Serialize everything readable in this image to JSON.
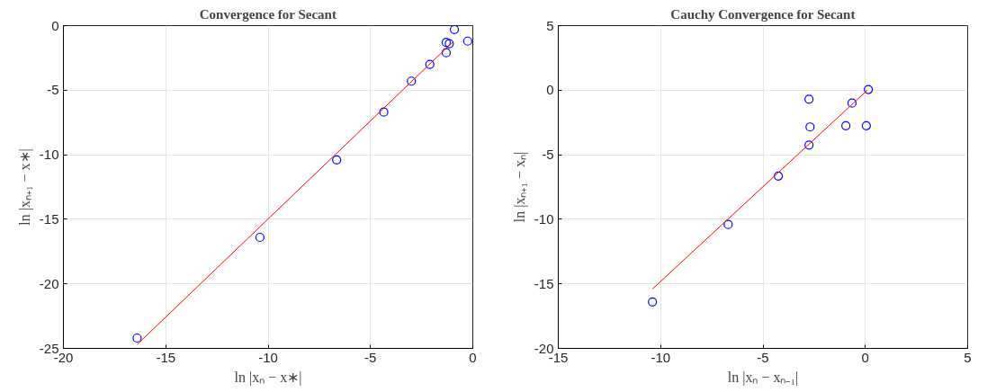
{
  "chart_data": [
    {
      "type": "scatter",
      "title": "Convergence for Secant",
      "xlabel": "ln |xₙ − x∗|",
      "ylabel": "ln |xₙ₊₁ − x∗|",
      "xlim": [
        -20,
        0
      ],
      "ylim": [
        -25,
        0
      ],
      "xticks": [
        -20,
        -15,
        -10,
        -5,
        0
      ],
      "yticks": [
        -25,
        -20,
        -15,
        -10,
        -5,
        0
      ],
      "grid": true,
      "series": [
        {
          "color": "#0000ff",
          "marker": "circle",
          "x": [
            -16.4,
            -10.4,
            -6.65,
            -4.35,
            -3.0,
            -2.1,
            -1.3,
            -1.3,
            -1.15,
            -0.9,
            -0.25
          ],
          "values": [
            -24.2,
            -16.4,
            -10.4,
            -6.7,
            -4.3,
            -3.0,
            -2.1,
            -1.3,
            -1.4,
            -0.3,
            -1.2
          ]
        },
        {
          "type": "line",
          "color": "#ff0000",
          "marker": "none",
          "x": [
            -16.4,
            -1.0
          ],
          "values": [
            -24.7,
            -1.3
          ]
        }
      ]
    },
    {
      "type": "scatter",
      "title": "Cauchy Convergence for Secant",
      "xlabel": "ln |xₙ − xₙ₋₁|",
      "ylabel": "ln |xₙ₊₁ − xₙ|",
      "xlim": [
        -15,
        5
      ],
      "ylim": [
        -20,
        5
      ],
      "xticks": [
        -15,
        -10,
        -5,
        0,
        5
      ],
      "yticks": [
        -20,
        -15,
        -10,
        -5,
        0,
        5
      ],
      "grid": true,
      "series": [
        {
          "color": "#0000ff",
          "marker": "circle",
          "x": [
            -10.4,
            -6.7,
            -4.25,
            -2.75,
            -2.75,
            -2.7,
            -0.95,
            -0.65,
            0.05,
            0.15
          ],
          "values": [
            -16.4,
            -10.4,
            -6.65,
            -4.25,
            -0.7,
            -2.85,
            -2.75,
            -1.0,
            -2.75,
            0.05
          ]
        },
        {
          "type": "line",
          "color": "#ff0000",
          "marker": "none",
          "x": [
            -10.4,
            0.1
          ],
          "values": [
            -15.4,
            0.0
          ]
        }
      ]
    }
  ]
}
